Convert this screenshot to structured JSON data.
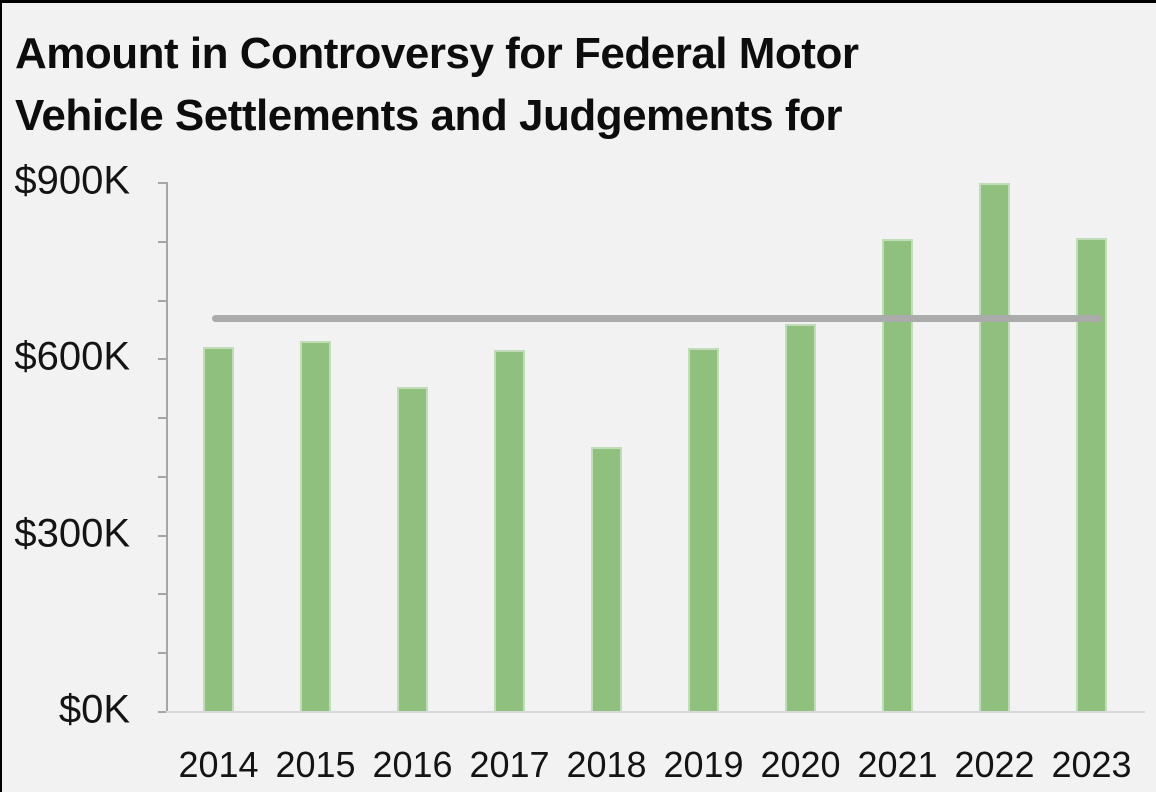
{
  "title": {
    "line1": "Amount in Controversy for Federal Motor",
    "line2": "Vehicle Settlements and Judgements for"
  },
  "chart_data": {
    "type": "bar",
    "title": "Amount in Controversy for Federal Motor Vehicle Settlements and Judgements for",
    "categories": [
      "2014",
      "2015",
      "2016",
      "2017",
      "2018",
      "2019",
      "2020",
      "2021",
      "2022",
      "2023"
    ],
    "values": [
      620,
      629,
      551,
      614,
      450,
      617,
      658,
      803,
      898,
      805
    ],
    "unit": "thousands of dollars",
    "ylim": [
      0,
      900
    ],
    "y_tick_labels": [
      {
        "label": "$900K",
        "value": 900
      },
      {
        "label": "$600K",
        "value": 600
      },
      {
        "label": "$300K",
        "value": 300
      },
      {
        "label": "$0K",
        "value": 0
      }
    ],
    "minor_tick_step_k": 100,
    "reference_line": {
      "value": 667,
      "color": "#ababab"
    },
    "bar_color": "#8fc07e",
    "axis_color": "#a6a6a6",
    "baseline_color": "#d9d9d9",
    "grid": false,
    "legend": false
  }
}
